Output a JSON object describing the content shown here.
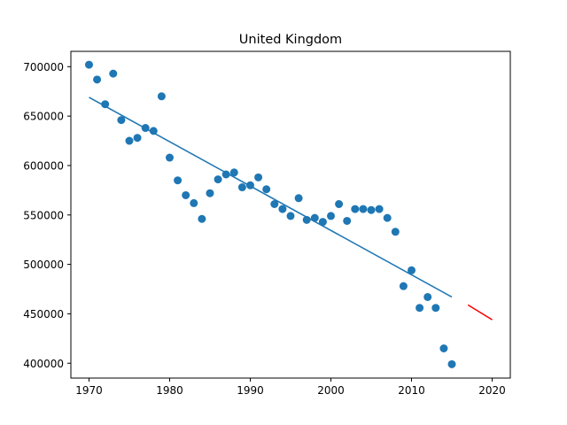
{
  "chart_data": {
    "type": "scatter",
    "title": "United Kingdom",
    "xlabel": "",
    "ylabel": "",
    "xlim": [
      1967.75,
      2022.25
    ],
    "ylim": [
      385000,
      715500
    ],
    "grid": false,
    "x_ticks": [
      1970,
      1980,
      1990,
      2000,
      2010,
      2020
    ],
    "x_tick_labels": [
      "1970",
      "1980",
      "1990",
      "2000",
      "2010",
      "2020"
    ],
    "y_ticks": [
      400000,
      450000,
      500000,
      550000,
      600000,
      650000,
      700000
    ],
    "y_tick_labels": [
      "400000",
      "450000",
      "500000",
      "550000",
      "600000",
      "650000",
      "700000"
    ],
    "colors": {
      "points": "#1f77b4",
      "trend": "#1f77b4",
      "forecast": "#ff0000"
    },
    "series": [
      {
        "type": "scatter",
        "x": [
          1970,
          1971,
          1972,
          1973,
          1974,
          1975,
          1976,
          1977,
          1978,
          1979,
          1980,
          1981,
          1982,
          1983,
          1984,
          1985,
          1986,
          1987,
          1988,
          1989,
          1990,
          1991,
          1992,
          1993,
          1994,
          1995,
          1996,
          1997,
          1998,
          1999,
          2000,
          2001,
          2002,
          2003,
          2004,
          2005,
          2006,
          2007,
          2008,
          2009,
          2010,
          2011,
          2012,
          2013,
          2014,
          2015
        ],
        "y": [
          702000,
          687000,
          662000,
          693000,
          646000,
          625000,
          628000,
          638000,
          635000,
          670000,
          608000,
          585000,
          570000,
          562000,
          546000,
          572000,
          586000,
          591000,
          593000,
          578000,
          580000,
          588000,
          576000,
          561000,
          556000,
          549000,
          567000,
          545000,
          547000,
          543000,
          549000,
          561000,
          544000,
          556000,
          556000,
          555000,
          556000,
          547000,
          533000,
          478000,
          494000,
          456000,
          467000,
          456000,
          415000,
          399000
        ]
      },
      {
        "type": "line",
        "x": [
          1970,
          2015
        ],
        "y": [
          669000,
          467000
        ]
      },
      {
        "type": "line",
        "x": [
          2017,
          2020
        ],
        "y": [
          459000,
          444000
        ]
      }
    ]
  }
}
